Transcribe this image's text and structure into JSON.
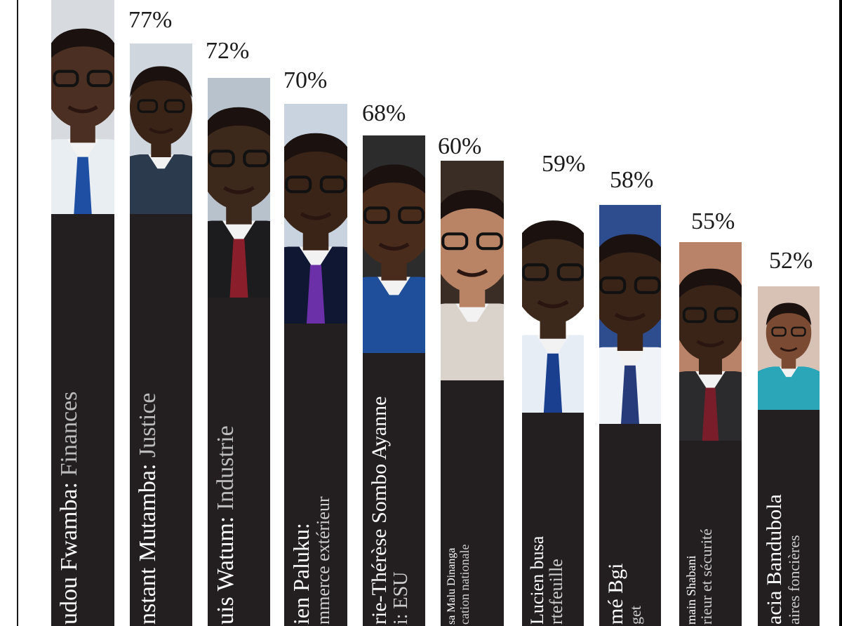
{
  "chart_data": {
    "type": "bar",
    "ylim": [
      0,
      100
    ],
    "categories": [
      "udou Fwamba: Finances",
      "nstant Mutamba: Justice",
      "uis Watum: Industrie",
      "ien Paluku: mmerce extérieur",
      "rie-Thérèse Sombo Ayanne i: ESU",
      "sa Malu Dinanga cation nationale",
      "Lucien busa rtefeuille",
      "mé Bgi get",
      "main Shabani rieur et sécurité",
      "acia Bandubola aires foncières"
    ],
    "values": [
      null,
      77,
      72,
      70,
      68,
      60,
      59,
      58,
      55,
      52
    ],
    "value_labels": [
      "",
      "77%",
      "72%",
      "70%",
      "68%",
      "60%",
      "59%",
      "58%",
      "55%",
      "52%"
    ]
  },
  "bars": [
    {
      "value_label": "",
      "line1": "udou Fwamba:",
      "line1b": " Finances",
      "line2": "",
      "skin": "#4a2f22",
      "suit": "#e9eef3",
      "tie": "#1f4fa3",
      "bg": "#d7dbe0"
    },
    {
      "value_label": "77%",
      "line1": "nstant Mutamba:",
      "line1b": " Justice",
      "line2": "",
      "skin": "#3a2418",
      "suit": "#2c3a4d",
      "tie": "#2c3a4d",
      "bg": "#cfd6de"
    },
    {
      "value_label": "72%",
      "line1": "uis Watum:",
      "line1b": " Industrie",
      "line2": "",
      "skin": "#3d281c",
      "suit": "#1c1c1f",
      "tie": "#8a1e2a",
      "bg": "#b8c2cc"
    },
    {
      "value_label": "70%",
      "line1": "ien Paluku:",
      "line1b": "",
      "line2": "mmerce extérieur",
      "skin": "#3a2418",
      "suit": "#0f1733",
      "tie": "#6b2fa8",
      "bg": "#c9d3df"
    },
    {
      "value_label": "68%",
      "line1": "rie-Thérèse Sombo Ayanne",
      "line1b": "",
      "line2": "i: ESU",
      "skin": "#4a2c1d",
      "suit": "#1f4f9a",
      "tie": "#1f4f9a",
      "bg": "#2c2c2c"
    },
    {
      "value_label": "60%",
      "line1": "sa Malu Dinanga",
      "line1b": "",
      "line2": "cation nationale",
      "skin": "#b98466",
      "suit": "#d9d3cc",
      "tie": "#d9d3cc",
      "bg": "#3a2d25"
    },
    {
      "value_label": "59%",
      "line1": "Lucien busa",
      "line1b": "",
      "line2": "rtefeuille",
      "skin": "#3d281c",
      "suit": "#e6edf5",
      "tie": "#1a3f8f",
      "bg": "#ffffff"
    },
    {
      "value_label": "58%",
      "line1": "mé Bgi",
      "line1b": "",
      "line2": "get",
      "skin": "#3a2418",
      "suit": "#f0f3f7",
      "tie": "#273b7a",
      "bg": "#2e4d8f"
    },
    {
      "value_label": "55%",
      "line1": "main Shabani",
      "line1b": "",
      "line2": "rieur et sécurité",
      "skin": "#3a2418",
      "suit": "#2b2b2e",
      "tie": "#7a1d2a",
      "bg": "#b9836a"
    },
    {
      "value_label": "52%",
      "line1": "acia Bandubola",
      "line1b": "",
      "line2": "aires foncières",
      "skin": "#7a4a33",
      "suit": "#2aa6b8",
      "tie": "#2aa6b8",
      "bg": "#d7c2b5"
    }
  ]
}
